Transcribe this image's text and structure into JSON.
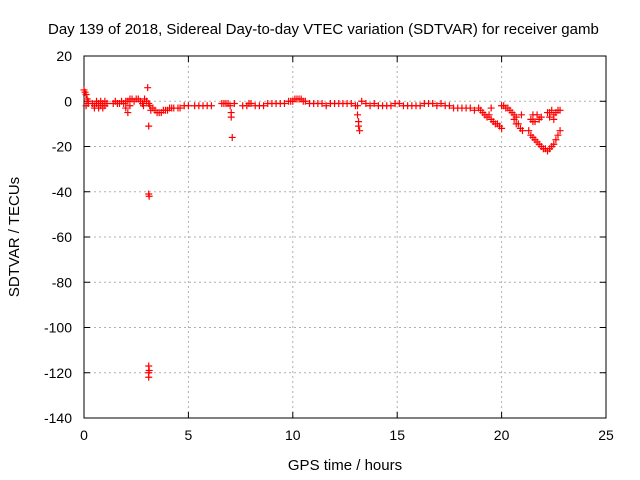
{
  "chart_data": {
    "type": "scatter",
    "title": "Day 139 of 2018, Sidereal Day-to-day VTEC variation (SDTVAR) for receiver gamb",
    "xlabel": "GPS time / hours",
    "ylabel": "SDTVAR / TECUs",
    "xlim": [
      0,
      25
    ],
    "ylim": [
      -140,
      20
    ],
    "x_ticks": [
      "0",
      "5",
      "10",
      "15",
      "20",
      "25"
    ],
    "x_tick_values": [
      0,
      5,
      10,
      15,
      20,
      25
    ],
    "y_ticks": [
      "20",
      "0",
      "-20",
      "-40",
      "-60",
      "-80",
      "-100",
      "-120",
      "-140"
    ],
    "y_tick_values": [
      20,
      0,
      -20,
      -40,
      -60,
      -80,
      -100,
      -120,
      -140
    ],
    "grid": true,
    "marker": "plus",
    "color": "#ff0000",
    "series": [
      {
        "name": "SDTVAR",
        "points": [
          [
            0.0,
            5
          ],
          [
            0.05,
            4
          ],
          [
            0.1,
            3
          ],
          [
            0.15,
            1
          ],
          [
            0.2,
            0
          ],
          [
            0.1,
            -2
          ],
          [
            0.2,
            -1
          ],
          [
            0.4,
            -1
          ],
          [
            0.5,
            -2
          ],
          [
            0.6,
            -1
          ],
          [
            0.7,
            -1
          ],
          [
            0.8,
            -2
          ],
          [
            0.9,
            -1
          ],
          [
            1.0,
            -2
          ],
          [
            1.1,
            -1
          ],
          [
            0.5,
            -3
          ],
          [
            0.7,
            -3
          ],
          [
            0.9,
            -3
          ],
          [
            0.6,
            0
          ],
          [
            0.8,
            0
          ],
          [
            1.0,
            0
          ],
          [
            1.4,
            -1
          ],
          [
            1.5,
            0
          ],
          [
            1.6,
            -1
          ],
          [
            1.7,
            -1
          ],
          [
            1.8,
            0
          ],
          [
            1.9,
            -1
          ],
          [
            2.0,
            0
          ],
          [
            2.0,
            -3
          ],
          [
            2.1,
            0
          ],
          [
            2.1,
            -5
          ],
          [
            2.2,
            1
          ],
          [
            2.2,
            -2
          ],
          [
            2.3,
            1
          ],
          [
            2.4,
            0
          ],
          [
            2.5,
            1
          ],
          [
            2.6,
            1
          ],
          [
            2.7,
            0
          ],
          [
            2.8,
            -1
          ],
          [
            2.85,
            -2
          ],
          [
            2.9,
            1
          ],
          [
            3.0,
            0
          ],
          [
            3.1,
            -1
          ],
          [
            3.15,
            -2
          ],
          [
            3.2,
            -4
          ],
          [
            3.05,
            6
          ],
          [
            3.1,
            -11
          ],
          [
            3.1,
            -41
          ],
          [
            3.12,
            -42
          ],
          [
            3.1,
            -117
          ],
          [
            3.12,
            -119
          ],
          [
            3.1,
            -120
          ],
          [
            3.1,
            -122
          ],
          [
            3.3,
            -3
          ],
          [
            3.4,
            -4
          ],
          [
            3.5,
            -5
          ],
          [
            3.6,
            -5
          ],
          [
            3.7,
            -5
          ],
          [
            3.8,
            -4
          ],
          [
            3.9,
            -4
          ],
          [
            4.0,
            -4
          ],
          [
            4.1,
            -3
          ],
          [
            4.2,
            -3
          ],
          [
            4.3,
            -3
          ],
          [
            4.5,
            -3
          ],
          [
            4.6,
            -3
          ],
          [
            4.8,
            -2
          ],
          [
            5.0,
            -2
          ],
          [
            5.3,
            -2
          ],
          [
            5.5,
            -2
          ],
          [
            5.7,
            -2
          ],
          [
            5.9,
            -2
          ],
          [
            6.1,
            -2
          ],
          [
            6.6,
            -1
          ],
          [
            6.7,
            -1
          ],
          [
            6.8,
            -1
          ],
          [
            6.9,
            -1
          ],
          [
            7.0,
            -2
          ],
          [
            7.05,
            -5
          ],
          [
            7.05,
            -7
          ],
          [
            7.1,
            -16
          ],
          [
            7.2,
            -1
          ],
          [
            7.6,
            -2
          ],
          [
            7.8,
            -2
          ],
          [
            7.9,
            -1
          ],
          [
            8.0,
            -1
          ],
          [
            8.2,
            -2
          ],
          [
            8.4,
            -2
          ],
          [
            8.6,
            -2
          ],
          [
            8.8,
            -1
          ],
          [
            9.0,
            -1
          ],
          [
            9.2,
            -1
          ],
          [
            9.4,
            -1
          ],
          [
            9.6,
            -1
          ],
          [
            9.8,
            0
          ],
          [
            9.9,
            0
          ],
          [
            10.0,
            0
          ],
          [
            10.1,
            1
          ],
          [
            10.2,
            1
          ],
          [
            10.3,
            1
          ],
          [
            10.4,
            1
          ],
          [
            10.5,
            0
          ],
          [
            10.6,
            0
          ],
          [
            10.8,
            -1
          ],
          [
            11.0,
            -1
          ],
          [
            11.2,
            -1
          ],
          [
            11.4,
            -1
          ],
          [
            11.6,
            -2
          ],
          [
            11.8,
            -1
          ],
          [
            12.0,
            -1
          ],
          [
            12.2,
            -1
          ],
          [
            12.4,
            -1
          ],
          [
            12.6,
            -1
          ],
          [
            12.8,
            -1
          ],
          [
            13.0,
            -2
          ],
          [
            13.1,
            -2
          ],
          [
            13.1,
            -6
          ],
          [
            13.15,
            -9
          ],
          [
            13.15,
            -11
          ],
          [
            13.2,
            -13
          ],
          [
            13.3,
            0
          ],
          [
            13.5,
            -1
          ],
          [
            13.7,
            -2
          ],
          [
            13.9,
            -1
          ],
          [
            14.1,
            -2
          ],
          [
            14.3,
            -2
          ],
          [
            14.5,
            -2
          ],
          [
            14.7,
            -2
          ],
          [
            14.9,
            -1
          ],
          [
            15.1,
            -1
          ],
          [
            15.3,
            -2
          ],
          [
            15.5,
            -2
          ],
          [
            15.7,
            -2
          ],
          [
            15.9,
            -2
          ],
          [
            16.1,
            -2
          ],
          [
            16.3,
            -1
          ],
          [
            16.5,
            -1
          ],
          [
            16.7,
            -1
          ],
          [
            16.9,
            -2
          ],
          [
            17.1,
            -1
          ],
          [
            17.3,
            -2
          ],
          [
            17.5,
            -2
          ],
          [
            17.7,
            -3
          ],
          [
            17.9,
            -3
          ],
          [
            18.1,
            -3
          ],
          [
            18.3,
            -3
          ],
          [
            18.5,
            -3
          ],
          [
            18.7,
            -4
          ],
          [
            18.9,
            -3
          ],
          [
            19.0,
            -4
          ],
          [
            19.1,
            -5
          ],
          [
            19.2,
            -6
          ],
          [
            19.3,
            -7
          ],
          [
            19.4,
            -6
          ],
          [
            19.5,
            -3
          ],
          [
            19.5,
            -8
          ],
          [
            19.6,
            -9
          ],
          [
            19.7,
            -10
          ],
          [
            19.8,
            -10
          ],
          [
            19.9,
            -11
          ],
          [
            20.0,
            -12
          ],
          [
            20.0,
            -2
          ],
          [
            20.1,
            -2
          ],
          [
            20.2,
            -3
          ],
          [
            20.3,
            -3
          ],
          [
            20.4,
            -4
          ],
          [
            20.5,
            -5
          ],
          [
            20.6,
            -6
          ],
          [
            20.7,
            -7
          ],
          [
            20.6,
            -8
          ],
          [
            20.7,
            -10
          ],
          [
            20.8,
            -10
          ],
          [
            20.9,
            -12
          ],
          [
            20.95,
            -6
          ],
          [
            21.0,
            -13
          ],
          [
            21.4,
            -8
          ],
          [
            21.5,
            -9
          ],
          [
            21.6,
            -9
          ],
          [
            21.8,
            -8
          ],
          [
            21.9,
            -7
          ],
          [
            21.5,
            -6
          ],
          [
            21.7,
            -6
          ],
          [
            21.3,
            -13
          ],
          [
            21.4,
            -15
          ],
          [
            21.5,
            -16
          ],
          [
            21.6,
            -17
          ],
          [
            21.7,
            -18
          ],
          [
            21.8,
            -19
          ],
          [
            21.9,
            -20
          ],
          [
            22.0,
            -21
          ],
          [
            22.1,
            -21
          ],
          [
            22.2,
            -22
          ],
          [
            22.3,
            -21
          ],
          [
            22.4,
            -20
          ],
          [
            22.5,
            -19
          ],
          [
            22.6,
            -17
          ],
          [
            22.7,
            -15
          ],
          [
            22.8,
            -13
          ],
          [
            22.2,
            -5
          ],
          [
            22.3,
            -5
          ],
          [
            22.4,
            -4
          ],
          [
            22.5,
            -6
          ],
          [
            22.6,
            -5
          ],
          [
            22.7,
            -4
          ],
          [
            22.8,
            -4
          ],
          [
            22.3,
            -7
          ],
          [
            22.5,
            -8
          ]
        ]
      }
    ]
  }
}
